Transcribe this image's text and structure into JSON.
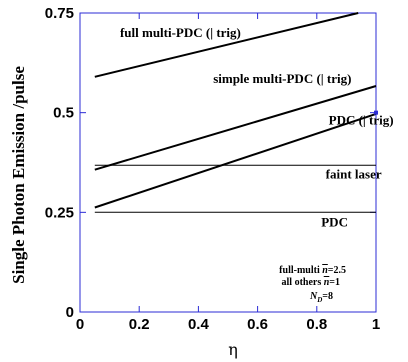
{
  "chart_data": {
    "type": "line",
    "xlabel": "η",
    "ylabel": "Single Photon Emission /pulse",
    "xlim": [
      0,
      1
    ],
    "ylim": [
      0,
      0.75
    ],
    "x_ticks": [
      0,
      0.2,
      0.4,
      0.6,
      0.8,
      1
    ],
    "x_tick_labels": [
      "0",
      "0.2",
      "0.4",
      "0.6",
      "0.8",
      "1"
    ],
    "y_ticks": [
      0,
      0.25,
      0.5,
      0.75
    ],
    "y_tick_labels": [
      "0",
      "0.25",
      "0.5",
      "0.75"
    ],
    "grid": false,
    "legend": "none",
    "series": [
      {
        "name": "full multi-PDC (| trig)",
        "x": [
          0.05,
          0.94
        ],
        "y": [
          0.59,
          0.75
        ],
        "stroke_width": 2
      },
      {
        "name": "simple multi-PDC (| trig)",
        "x": [
          0.05,
          1.0
        ],
        "y": [
          0.357,
          0.567
        ],
        "stroke_width": 2
      },
      {
        "name": "PDC (| trig)",
        "x": [
          0.05,
          1.0
        ],
        "y": [
          0.262,
          0.497
        ],
        "stroke_width": 2
      },
      {
        "name": "faint laser",
        "x": [
          0.05,
          1.0
        ],
        "y": [
          0.368,
          0.368
        ],
        "stroke_width": 1
      },
      {
        "name": "PDC",
        "x": [
          0.05,
          1.0
        ],
        "y": [
          0.25,
          0.25
        ],
        "stroke_width": 1
      }
    ],
    "annotations": [
      {
        "text": "full multi-PDC (| trig)",
        "x": 0.135,
        "y": 0.69
      },
      {
        "text": "simple multi-PDC (| trig)",
        "x": 0.45,
        "y": 0.575
      },
      {
        "text": "PDC (| trig)",
        "x": 0.84,
        "y": 0.47
      },
      {
        "text": "faint laser",
        "x": 0.83,
        "y": 0.335
      },
      {
        "text": "PDC",
        "x": 0.815,
        "y": 0.215
      }
    ],
    "note": {
      "line1_prefix": "full-multi ",
      "line1_var": "n",
      "line1_suffix": "=2.5",
      "line2_prefix": "all others ",
      "line2_var": "n",
      "line2_suffix": "=1",
      "line3_var": "N",
      "line3_sub": "D",
      "line3_suffix": "=8"
    },
    "colors": {
      "frame": "#2b2bd6",
      "lines": "#000000",
      "end_marker": "#2b2bd6"
    }
  }
}
